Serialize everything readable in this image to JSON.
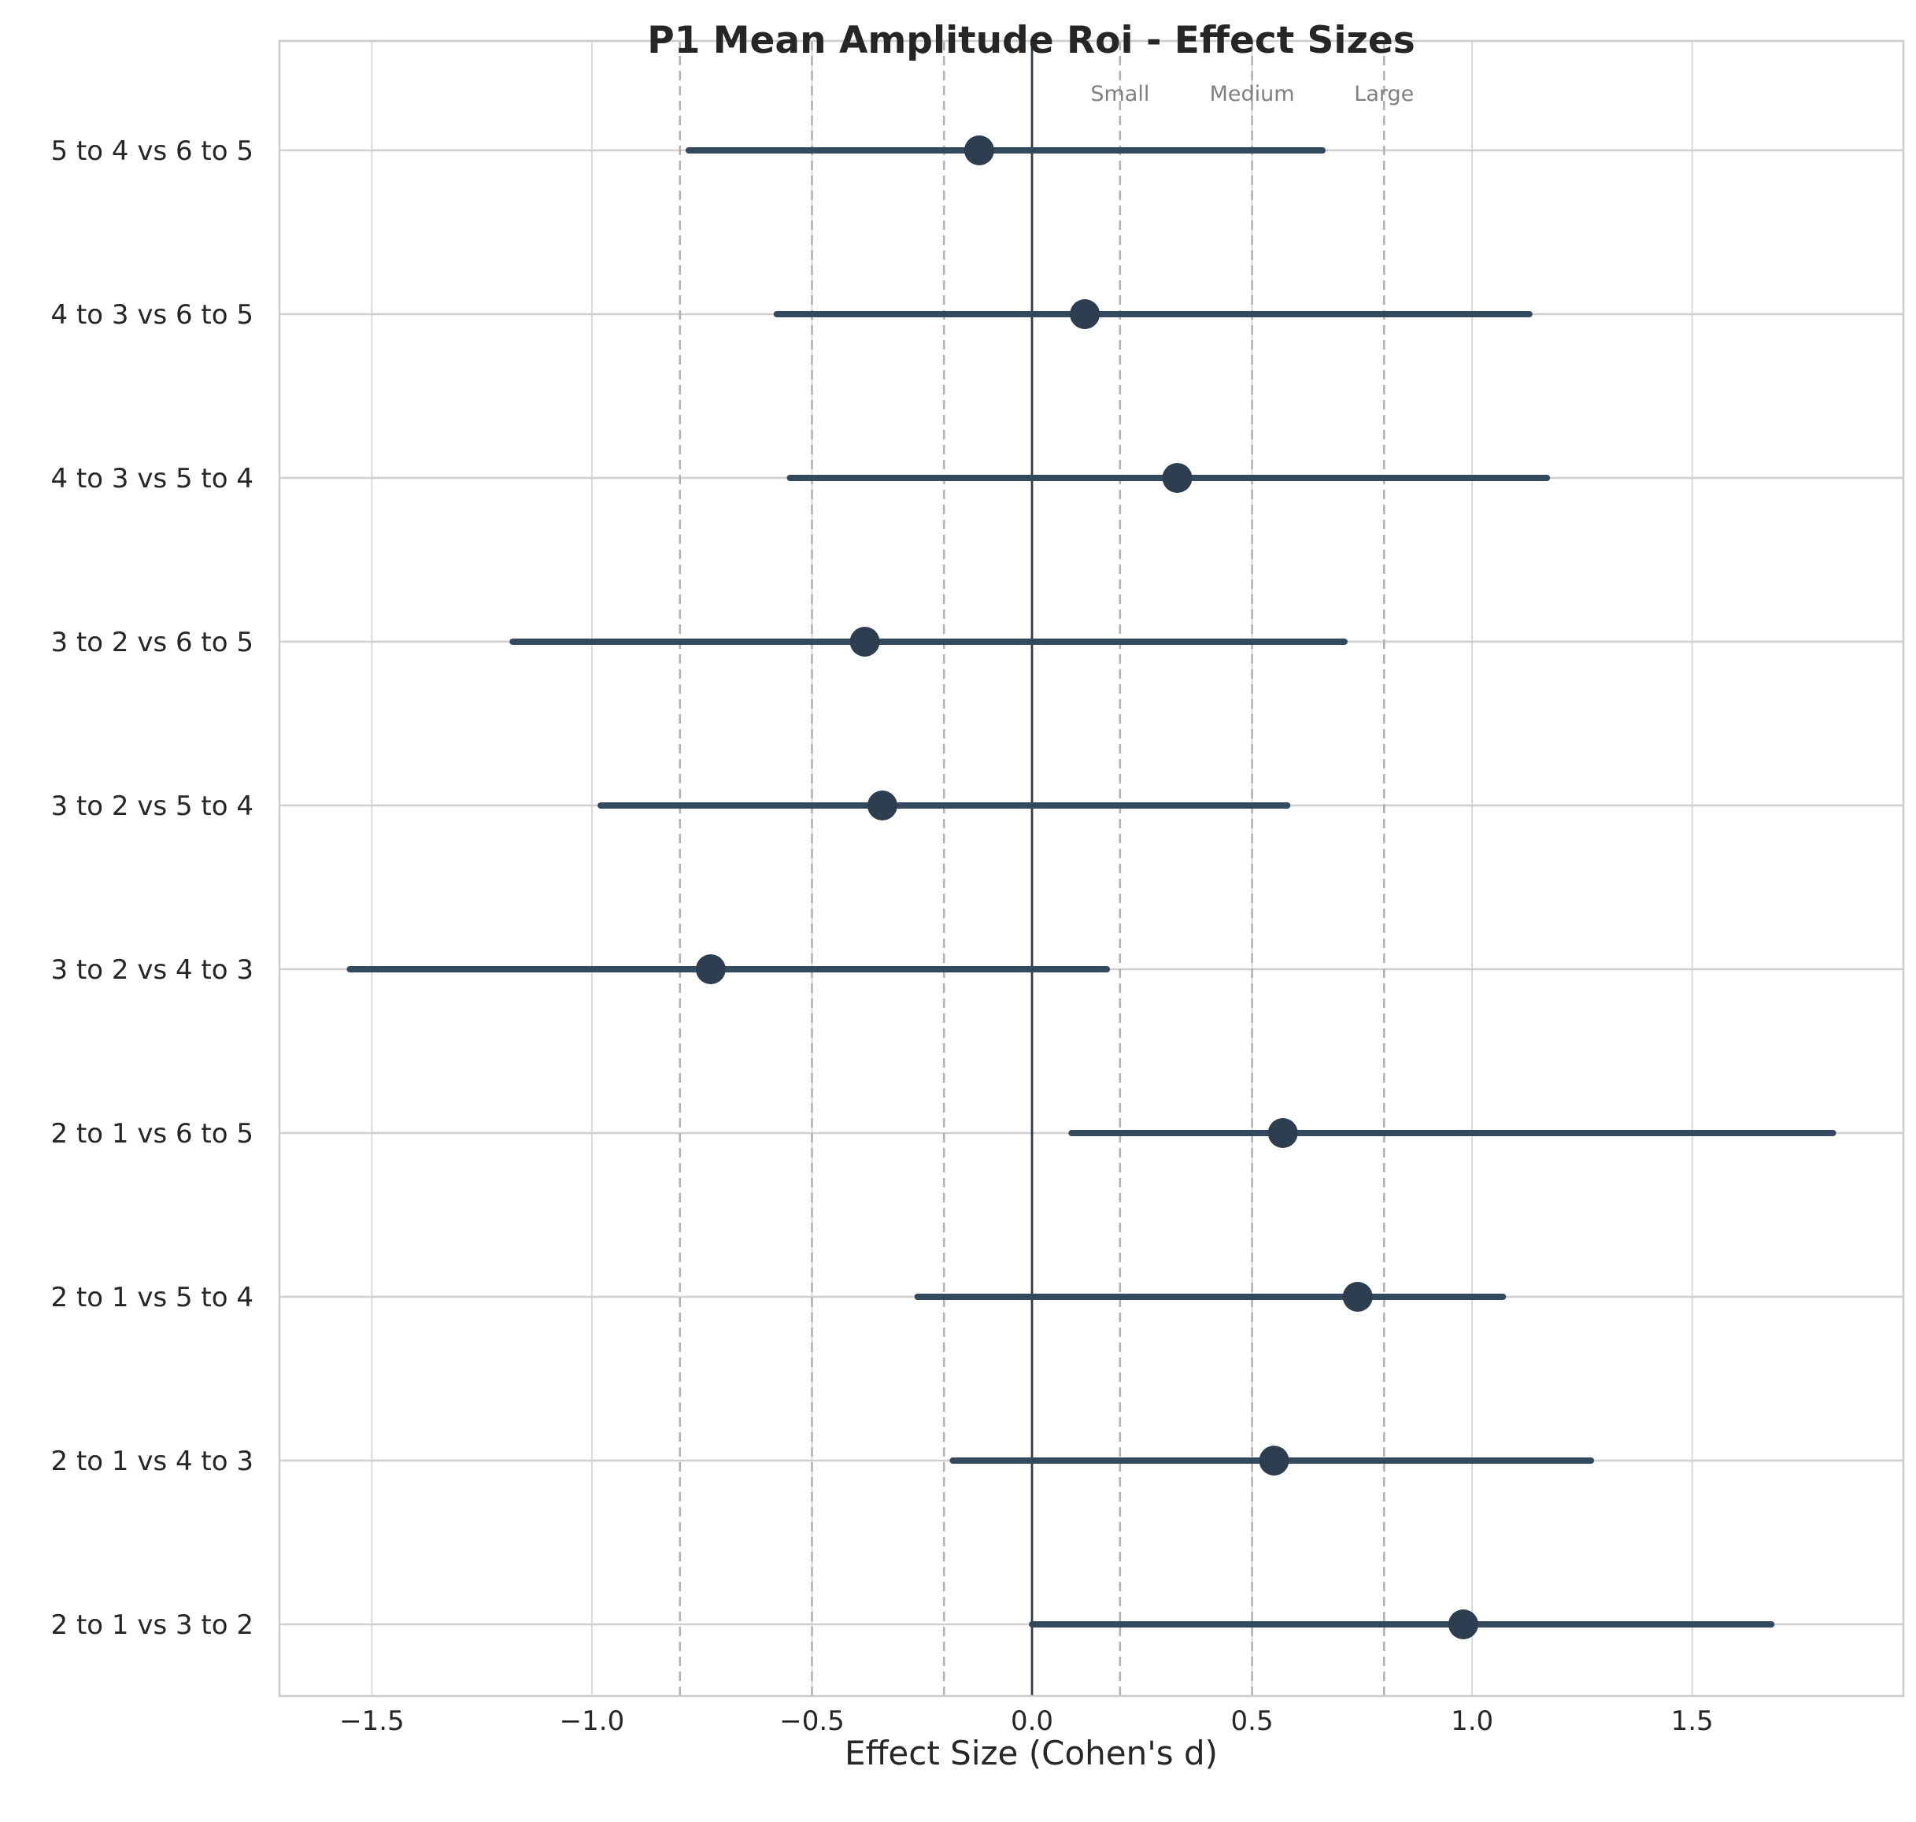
{
  "chart_data": {
    "type": "forest",
    "title": "P1 Mean Amplitude Roi - Effect Sizes",
    "xlabel": "Effect Size (Cohen's d)",
    "ylabel": "",
    "xlim": [
      -1.71,
      1.98
    ],
    "xticks": [
      -1.5,
      -1.0,
      -0.5,
      0.0,
      0.5,
      1.0,
      1.5
    ],
    "xtick_labels": [
      "−1.5",
      "−1.0",
      "−0.5",
      "0.0",
      "0.5",
      "1.0",
      "1.5"
    ],
    "grid": true,
    "zero_line": 0,
    "thresholds": [
      {
        "label": "Small",
        "value": 0.2,
        "mirror": -0.2
      },
      {
        "label": "Medium",
        "value": 0.5,
        "mirror": -0.5
      },
      {
        "label": "Large",
        "value": 0.8,
        "mirror": -0.8
      }
    ],
    "rows": [
      {
        "label": "5 to 4 vs 6 to 5",
        "d": -0.12,
        "ci_low": -0.78,
        "ci_high": 0.66
      },
      {
        "label": "4 to 3 vs 6 to 5",
        "d": 0.12,
        "ci_low": -0.58,
        "ci_high": 1.13
      },
      {
        "label": "4 to 3 vs 5 to 4",
        "d": 0.33,
        "ci_low": -0.55,
        "ci_high": 1.17
      },
      {
        "label": "3 to 2 vs 6 to 5",
        "d": -0.38,
        "ci_low": -1.18,
        "ci_high": 0.71
      },
      {
        "label": "3 to 2 vs 5 to 4",
        "d": -0.34,
        "ci_low": -0.98,
        "ci_high": 0.58
      },
      {
        "label": "3 to 2 vs 4 to 3",
        "d": -0.73,
        "ci_low": -1.55,
        "ci_high": 0.17
      },
      {
        "label": "2 to 1 vs 6 to 5",
        "d": 0.57,
        "ci_low": 0.09,
        "ci_high": 1.82
      },
      {
        "label": "2 to 1 vs 5 to 4",
        "d": 0.74,
        "ci_low": -0.26,
        "ci_high": 1.07
      },
      {
        "label": "2 to 1 vs 4 to 3",
        "d": 0.55,
        "ci_low": -0.18,
        "ci_high": 1.27
      },
      {
        "label": "2 to 1 vs 3 to 2",
        "d": 0.98,
        "ci_low": 0.0,
        "ci_high": 1.68
      }
    ],
    "colors": {
      "marker": "#2c3e50",
      "ci_line": "#34495e",
      "zero_line": "#2c3e50",
      "threshold_line": "#b3b3b3",
      "grid": "#d9d9d9",
      "frame": "#cccccc"
    }
  }
}
